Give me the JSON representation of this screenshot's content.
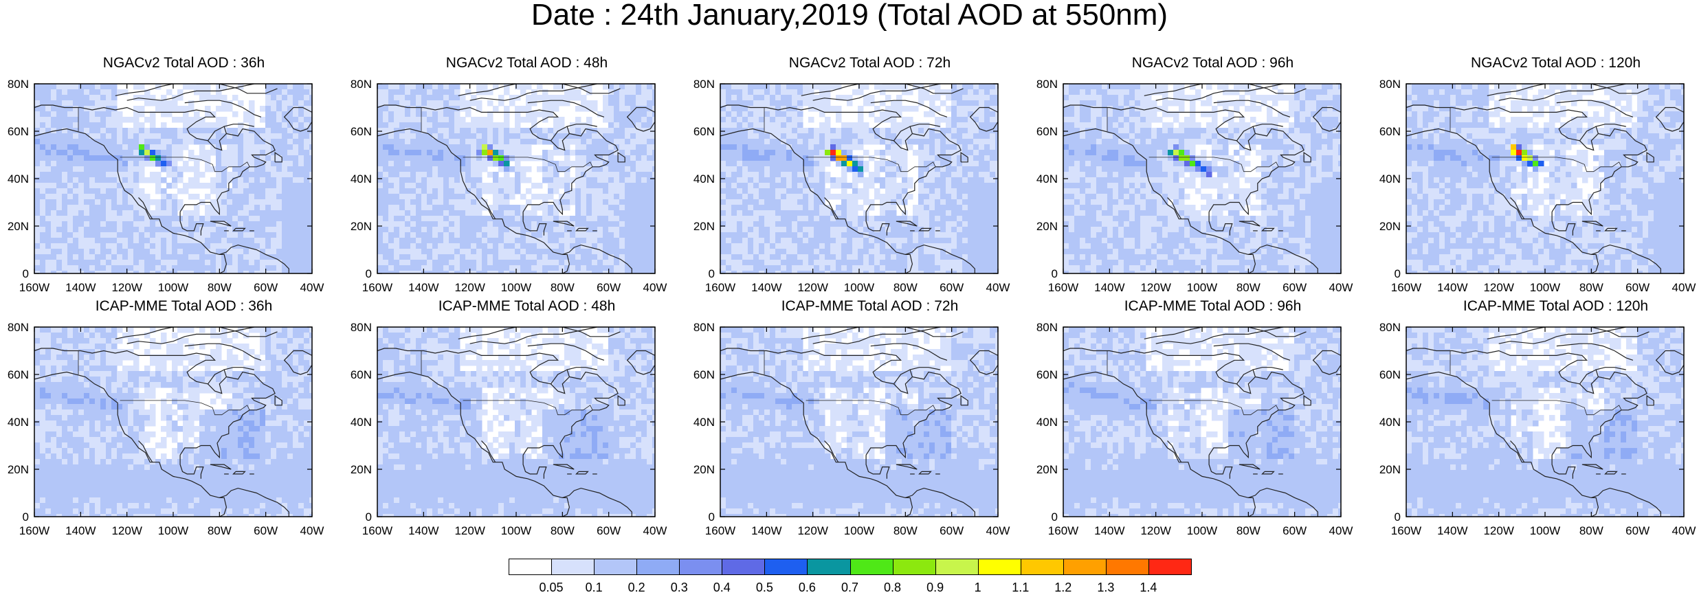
{
  "title": "Date : 24th January,2019 (Total AOD at 550nm)",
  "x_tick_labels": [
    "160W",
    "140W",
    "120W",
    "100W",
    "80W",
    "60W",
    "40W"
  ],
  "y_tick_labels": [
    "80N",
    "60N",
    "40N",
    "20N",
    "0"
  ],
  "panels": [
    {
      "title": "NGACv2 Total AOD : 36h",
      "plume": {
        "peak": 0.9,
        "extent": 0.6
      }
    },
    {
      "title": "NGACv2 Total AOD : 48h",
      "plume": {
        "peak": 1.2,
        "extent": 0.5
      }
    },
    {
      "title": "NGACv2 Total AOD : 72h",
      "plume": {
        "peak": 1.4,
        "extent": 0.9
      }
    },
    {
      "title": "NGACv2 Total AOD : 96h",
      "plume": {
        "peak": 0.9,
        "extent": 1.0
      }
    },
    {
      "title": "NGACv2 Total AOD : 120h",
      "plume": {
        "peak": 1.4,
        "extent": 0.6
      }
    },
    {
      "title": "ICAP-MME Total AOD : 36h",
      "plume": null
    },
    {
      "title": "ICAP-MME Total AOD : 48h",
      "plume": null
    },
    {
      "title": "ICAP-MME Total AOD : 72h",
      "plume": null
    },
    {
      "title": "ICAP-MME Total AOD : 96h",
      "plume": null
    },
    {
      "title": "ICAP-MME Total AOD : 120h",
      "plume": null
    }
  ],
  "colorbar": {
    "colors": [
      "#ffffff",
      "#d7e1fc",
      "#b3c6f8",
      "#8fabf5",
      "#7b8ff0",
      "#5f6ae6",
      "#1e5ff0",
      "#0a96a0",
      "#4fe817",
      "#8ce80f",
      "#c8f54b",
      "#ffff00",
      "#ffc800",
      "#ffa000",
      "#ff7800",
      "#ff2814"
    ],
    "labels": [
      "0.05",
      "0.1",
      "0.2",
      "0.3",
      "0.4",
      "0.5",
      "0.6",
      "0.7",
      "0.8",
      "0.9",
      "1",
      "1.1",
      "1.2",
      "1.3",
      "1.4"
    ]
  }
}
